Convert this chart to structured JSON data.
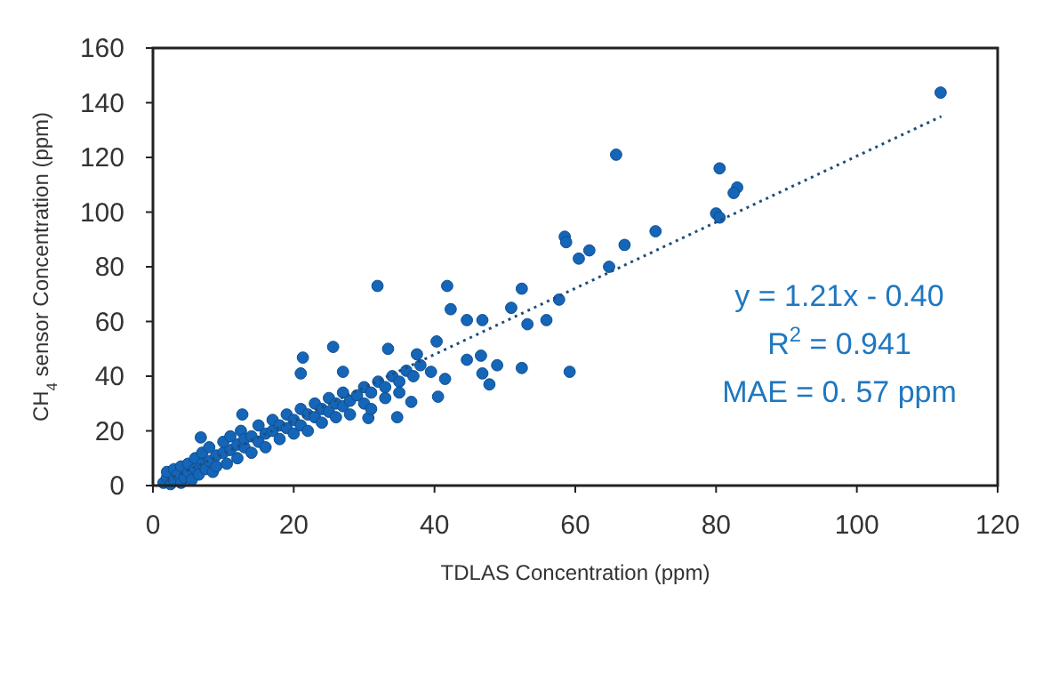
{
  "chart_data": {
    "type": "scatter",
    "xlabel": "TDLAS Concentration (ppm)",
    "ylabel": "CH$_{4}$ sensor Concentration (ppm)",
    "xlim": [
      0,
      120
    ],
    "xticks": [
      0,
      20,
      40,
      60,
      80,
      100,
      120
    ],
    "ylim": [
      0,
      160
    ],
    "yticks": [
      0,
      20,
      40,
      60,
      80,
      100,
      120,
      140,
      160
    ],
    "grid": false,
    "annotations": [
      "y = 1.21x - 0.40",
      "R$^{2}$ = 0.941",
      "MAE = 0. 57 ppm"
    ],
    "series": [
      {
        "color": "#1565b8",
        "marker": "circle",
        "x": [
          111.9,
          65.8,
          80.5,
          83,
          82.5,
          80,
          80.5,
          71.4,
          67,
          64.8,
          62,
          60.5,
          58.5,
          58.7,
          57.7,
          55.9,
          59.2,
          31.9,
          41.8,
          42.3,
          52.4,
          50.9,
          53.2,
          52.4,
          47.8,
          48.9,
          46.8,
          44.6,
          46.6,
          44.6,
          46.8,
          40.3,
          40.5,
          41.5,
          39.5,
          36.7,
          34.7,
          30.6,
          25.6,
          21.3,
          21,
          27,
          12.7,
          6.8,
          33.4,
          37.5,
          1.5,
          2,
          2,
          2.5,
          3,
          3,
          3.5,
          4,
          4,
          4.5,
          5,
          5,
          5.5,
          6,
          6,
          6.5,
          7,
          7,
          7.5,
          8,
          8,
          8.5,
          9,
          9,
          10,
          10,
          10.5,
          11,
          11,
          12,
          12,
          12.5,
          13,
          13,
          14,
          14,
          15,
          15,
          16,
          16,
          17,
          17,
          18,
          18,
          19,
          19,
          20,
          20,
          21,
          21,
          22,
          22,
          23,
          23,
          24,
          24,
          25,
          25,
          26,
          26,
          27,
          27,
          28,
          28,
          29,
          30,
          30,
          31,
          32,
          33,
          33,
          34,
          35,
          36,
          37,
          38,
          35,
          31
        ],
        "values": [
          143.7,
          121,
          116,
          109,
          107,
          99.5,
          98,
          93,
          88,
          80,
          86,
          83,
          91,
          89,
          68,
          60.5,
          41.6,
          73,
          73,
          64.5,
          72,
          65,
          59,
          43,
          37,
          44,
          41,
          46,
          47.5,
          60.5,
          60.5,
          52.7,
          32.5,
          39,
          41.6,
          30.6,
          25,
          24.7,
          50.7,
          46.8,
          41,
          41.6,
          26,
          17.6,
          50,
          48,
          1,
          3,
          5,
          0.5,
          2,
          6,
          4,
          1,
          7,
          3,
          5,
          8,
          2,
          6,
          10,
          4,
          8,
          12,
          6,
          9,
          14,
          5,
          11,
          7,
          12,
          16,
          8,
          13,
          18,
          10,
          15,
          20,
          14,
          17,
          12,
          18,
          16,
          22,
          14,
          19,
          20,
          24,
          17,
          22,
          21,
          26,
          19,
          24,
          22,
          28,
          20,
          26,
          25,
          30,
          23,
          28,
          27,
          32,
          25,
          30,
          29,
          34,
          31,
          26,
          33,
          30,
          36,
          34,
          38,
          36,
          32,
          40,
          38,
          42,
          40,
          44,
          34,
          28
        ]
      },
      {
        "type": "line",
        "color": "#1f4e79",
        "marker": "none",
        "line_style": "dotted",
        "x": [
          2,
          112
        ],
        "values": [
          2,
          135
        ]
      }
    ]
  }
}
